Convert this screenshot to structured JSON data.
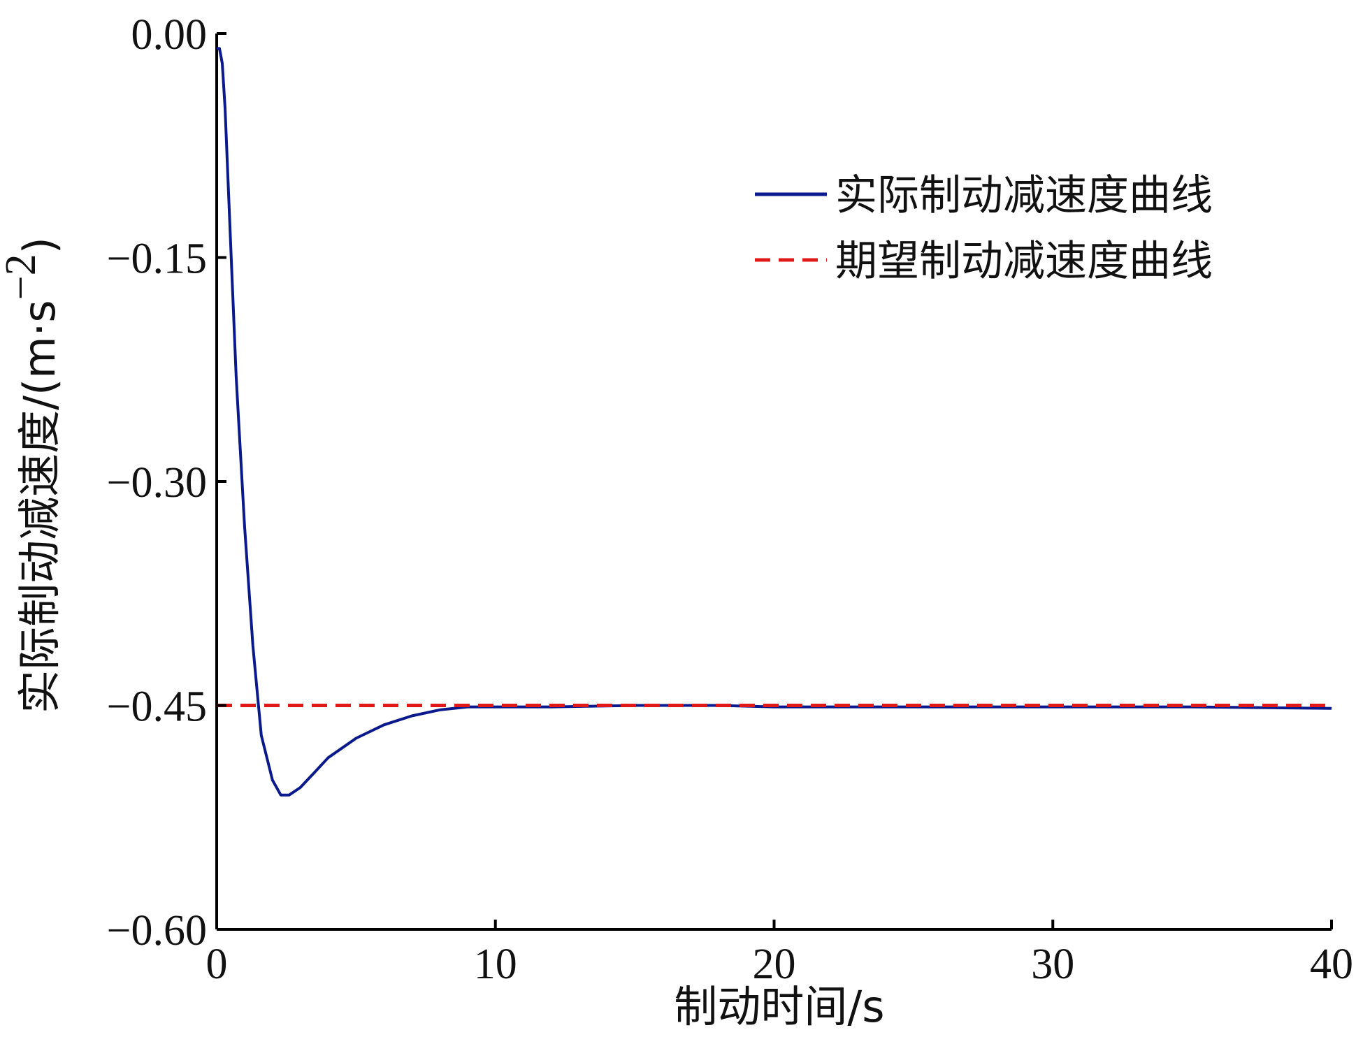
{
  "chart_data": {
    "type": "line",
    "xlabel": "制动时间/s",
    "ylabel": "实际制动减速度/(m·s",
    "ylabel_sup": "−2",
    "ylabel_close": ")",
    "xlim": [
      0,
      40
    ],
    "ylim": [
      -0.6,
      0.0
    ],
    "xticks": [
      0,
      10,
      20,
      30,
      40
    ],
    "xtick_labels": [
      "0",
      "10",
      "20",
      "30",
      "40"
    ],
    "yticks": [
      0.0,
      -0.15,
      -0.3,
      -0.45,
      -0.6
    ],
    "ytick_labels": [
      "0.00",
      "−0.15",
      "−0.30",
      "−0.45",
      "−0.60"
    ],
    "grid": false,
    "legend_position": "top-right",
    "series": [
      {
        "name": "实际制动减速度曲线",
        "color": "#0a1a8c",
        "style": "solid",
        "x": [
          0,
          0.1,
          0.2,
          0.3,
          0.5,
          0.7,
          1.0,
          1.3,
          1.6,
          2.0,
          2.3,
          2.6,
          3.0,
          3.5,
          4.0,
          5.0,
          6.0,
          7.0,
          8.0,
          9.0,
          10,
          12,
          15,
          18,
          20,
          25,
          30,
          35,
          40
        ],
        "y": [
          -0.01,
          -0.01,
          -0.02,
          -0.05,
          -0.14,
          -0.23,
          -0.33,
          -0.41,
          -0.47,
          -0.5,
          -0.51,
          -0.51,
          -0.505,
          -0.495,
          -0.485,
          -0.472,
          -0.463,
          -0.457,
          -0.453,
          -0.451,
          -0.451,
          -0.451,
          -0.45,
          -0.45,
          -0.451,
          -0.451,
          -0.451,
          -0.451,
          -0.452
        ]
      },
      {
        "name": "期望制动减速度曲线",
        "color": "#e01818",
        "style": "dashed",
        "x": [
          0,
          40
        ],
        "y": [
          -0.45,
          -0.45
        ]
      }
    ]
  }
}
